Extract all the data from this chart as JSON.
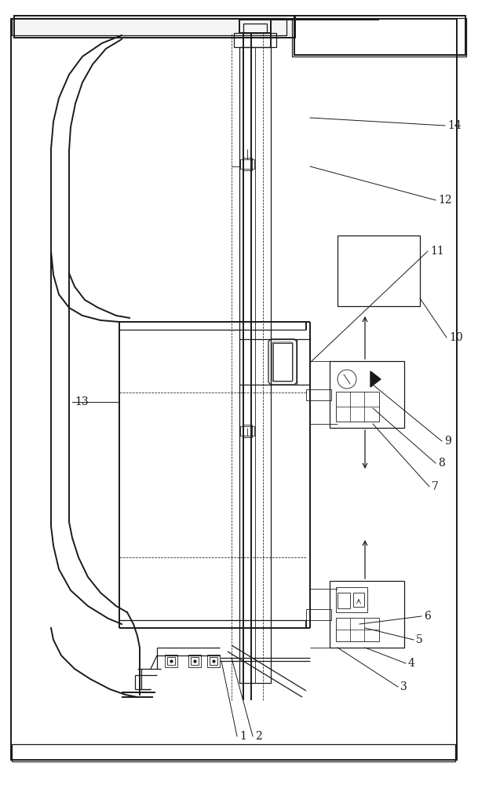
{
  "bg_color": "#ffffff",
  "line_color": "#1a1a1a",
  "fig_width": 6.23,
  "fig_height": 10.0,
  "lw_thick": 1.4,
  "lw_med": 0.9,
  "lw_thin": 0.6,
  "lw_dash": 0.55
}
